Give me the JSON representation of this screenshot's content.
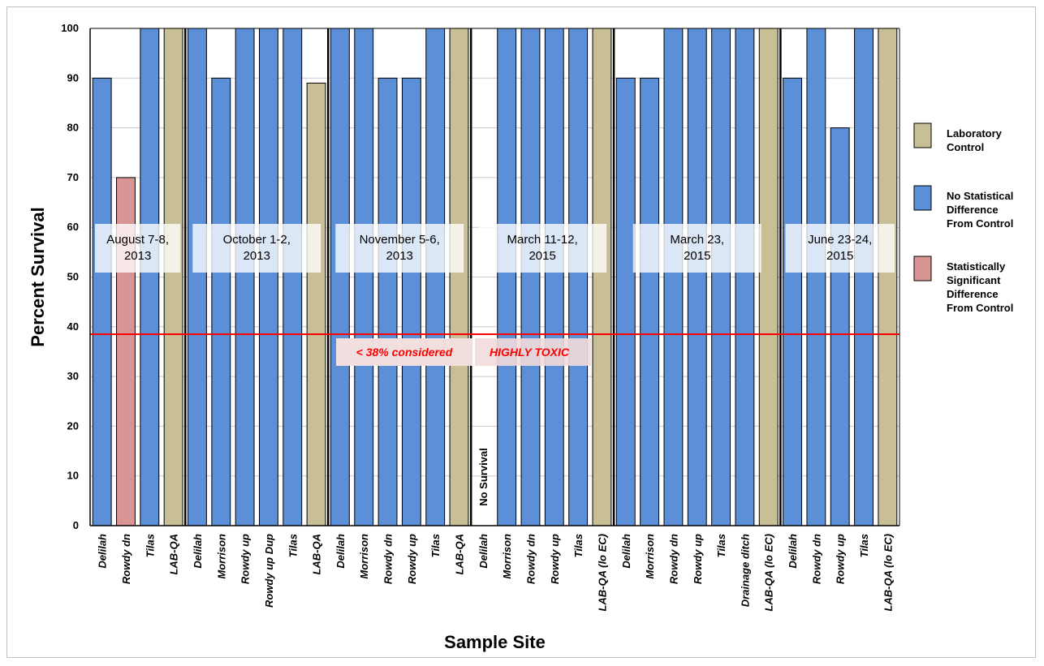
{
  "chart_data": {
    "type": "bar",
    "ylabel": "Percent  Survival",
    "xlabel": "Sample Site",
    "ylim": [
      0,
      100
    ],
    "yticks": [
      0,
      10,
      20,
      30,
      40,
      50,
      60,
      70,
      80,
      90,
      100
    ],
    "grid": true,
    "legend_position": "right",
    "colors": {
      "Laboratory Control": "#c9bf96",
      "No Statistical Difference From Control": "#5b8fd8",
      "Statistically Significant Difference From Control": "#d99594",
      "threshold_line": "#ff0000"
    },
    "legend": [
      {
        "key": "Laboratory Control",
        "text": [
          "Laboratory",
          "Control"
        ]
      },
      {
        "key": "No Statistical Difference From Control",
        "text": [
          "No Statistical",
          "Difference",
          "From Control"
        ]
      },
      {
        "key": "Statistically Significant Difference From Control",
        "text": [
          "Statistically",
          "Significant",
          "Difference",
          "From Control"
        ]
      }
    ],
    "groups": [
      {
        "label": [
          "August 7-8,",
          "2013"
        ],
        "bars": [
          {
            "site": "Delilah",
            "value": 90,
            "category": "No Statistical Difference From Control"
          },
          {
            "site": "Rowdy dn",
            "value": 70,
            "category": "Statistically Significant Difference From Control"
          },
          {
            "site": "Tilas",
            "value": 100,
            "category": "No Statistical Difference From Control"
          },
          {
            "site": "LAB-QA",
            "value": 100,
            "category": "Laboratory Control"
          }
        ]
      },
      {
        "label": [
          "October 1-2,",
          "2013"
        ],
        "bars": [
          {
            "site": "Delilah",
            "value": 100,
            "category": "No Statistical Difference From Control"
          },
          {
            "site": "Morrison",
            "value": 90,
            "category": "No Statistical Difference From Control"
          },
          {
            "site": "Rowdy up",
            "value": 100,
            "category": "No Statistical Difference From Control"
          },
          {
            "site": "Rowdy up Dup",
            "value": 100,
            "category": "No Statistical Difference From Control"
          },
          {
            "site": "Tilas",
            "value": 100,
            "category": "No Statistical Difference From Control"
          },
          {
            "site": "LAB-QA",
            "value": 89,
            "category": "Laboratory Control"
          }
        ]
      },
      {
        "label": [
          "November 5-6,",
          "2013"
        ],
        "bars": [
          {
            "site": "Delilah",
            "value": 100,
            "category": "No Statistical Difference From Control"
          },
          {
            "site": "Morrison",
            "value": 100,
            "category": "No Statistical Difference From Control"
          },
          {
            "site": "Rowdy dn",
            "value": 90,
            "category": "No Statistical Difference From Control"
          },
          {
            "site": "Rowdy up",
            "value": 90,
            "category": "No Statistical Difference From Control"
          },
          {
            "site": "Tilas",
            "value": 100,
            "category": "No Statistical Difference From Control"
          },
          {
            "site": "LAB-QA",
            "value": 100,
            "category": "Laboratory Control"
          }
        ]
      },
      {
        "label": [
          "March 11-12,",
          "2015"
        ],
        "bars": [
          {
            "site": "Delilah",
            "value": 0,
            "category": "No Statistical Difference From Control",
            "annotation": "No Survival"
          },
          {
            "site": "Morrison",
            "value": 100,
            "category": "No Statistical Difference From Control"
          },
          {
            "site": "Rowdy dn",
            "value": 100,
            "category": "No Statistical Difference From Control"
          },
          {
            "site": "Rowdy up",
            "value": 100,
            "category": "No Statistical Difference From Control"
          },
          {
            "site": "Tilas",
            "value": 100,
            "category": "No Statistical Difference From Control"
          },
          {
            "site": "LAB-QA (lo EC)",
            "value": 100,
            "category": "Laboratory Control"
          }
        ]
      },
      {
        "label": [
          "March 23,",
          "2015"
        ],
        "bars": [
          {
            "site": "Delilah",
            "value": 90,
            "category": "No Statistical Difference From Control"
          },
          {
            "site": "Morrison",
            "value": 90,
            "category": "No Statistical Difference From Control"
          },
          {
            "site": "Rowdy dn",
            "value": 100,
            "category": "No Statistical Difference From Control"
          },
          {
            "site": "Rowdy up",
            "value": 100,
            "category": "No Statistical Difference From Control"
          },
          {
            "site": "Tilas",
            "value": 100,
            "category": "No Statistical Difference From Control"
          },
          {
            "site": "Drainage ditch",
            "value": 100,
            "category": "No Statistical Difference From Control"
          },
          {
            "site": "LAB-QA (lo EC)",
            "value": 100,
            "category": "Laboratory Control"
          }
        ]
      },
      {
        "label": [
          "June 23-24,",
          "2015"
        ],
        "bars": [
          {
            "site": "Delilah",
            "value": 90,
            "category": "No Statistical Difference From Control"
          },
          {
            "site": "Rowdy dn",
            "value": 100,
            "category": "No Statistical Difference From Control"
          },
          {
            "site": "Rowdy up",
            "value": 80,
            "category": "No Statistical Difference From Control"
          },
          {
            "site": "Tilas",
            "value": 100,
            "category": "No Statistical Difference From Control"
          },
          {
            "site": "LAB-QA (lo EC)",
            "value": 100,
            "category": "Laboratory Control"
          }
        ]
      }
    ],
    "threshold": {
      "value": 38.5,
      "text_parts": [
        "< 38% considered",
        "HIGHLY  TOXIC"
      ]
    }
  }
}
